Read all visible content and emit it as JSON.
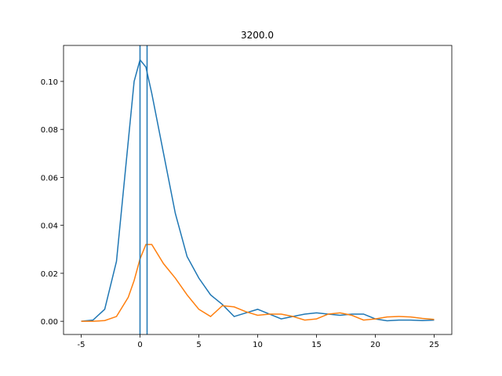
{
  "chart_data": {
    "type": "line",
    "title": "3200.0",
    "x": [
      -5,
      -4,
      -3,
      -2,
      -1,
      -0.5,
      0,
      0.5,
      1,
      2,
      3,
      4,
      5,
      6,
      7,
      8,
      9,
      10,
      11,
      12,
      13,
      14,
      15,
      16,
      17,
      18,
      19,
      20,
      21,
      22,
      23,
      24,
      25
    ],
    "series": [
      {
        "color": "#1f77b4",
        "values": [
          0,
          0.0005,
          0.005,
          0.025,
          0.075,
          0.1,
          0.109,
          0.106,
          0.095,
          0.07,
          0.045,
          0.027,
          0.018,
          0.011,
          0.007,
          0.002,
          0.0035,
          0.005,
          0.003,
          0.001,
          0.002,
          0.003,
          0.0035,
          0.003,
          0.0025,
          0.003,
          0.003,
          0.001,
          0.0002,
          0.0005,
          0.0005,
          0.0003,
          0.0005
        ]
      },
      {
        "color": "#ff7f0e",
        "values": [
          0,
          0,
          0.0003,
          0.002,
          0.01,
          0.017,
          0.026,
          0.032,
          0.032,
          0.024,
          0.018,
          0.011,
          0.005,
          0.002,
          0.0065,
          0.006,
          0.004,
          0.0025,
          0.003,
          0.003,
          0.002,
          0.0005,
          0.001,
          0.003,
          0.0035,
          0.0025,
          0.0005,
          0.001,
          0.0018,
          0.002,
          0.0018,
          0.0012,
          0.0008
        ]
      }
    ],
    "vlines": [
      0,
      0.6
    ],
    "vline_color": "#1f77b4",
    "xlim": [
      -6.5,
      26.5
    ],
    "ylim": [
      -0.0055,
      0.115
    ],
    "xticks": [
      -5,
      0,
      5,
      10,
      15,
      20,
      25
    ],
    "yticks": [
      {
        "value": 0,
        "label": "0.00"
      },
      {
        "value": 0.02,
        "label": "0.02"
      },
      {
        "value": 0.04,
        "label": "0.04"
      },
      {
        "value": 0.06,
        "label": "0.06"
      },
      {
        "value": 0.08,
        "label": "0.08"
      },
      {
        "value": 0.1,
        "label": "0.10"
      }
    ],
    "grid": false
  }
}
